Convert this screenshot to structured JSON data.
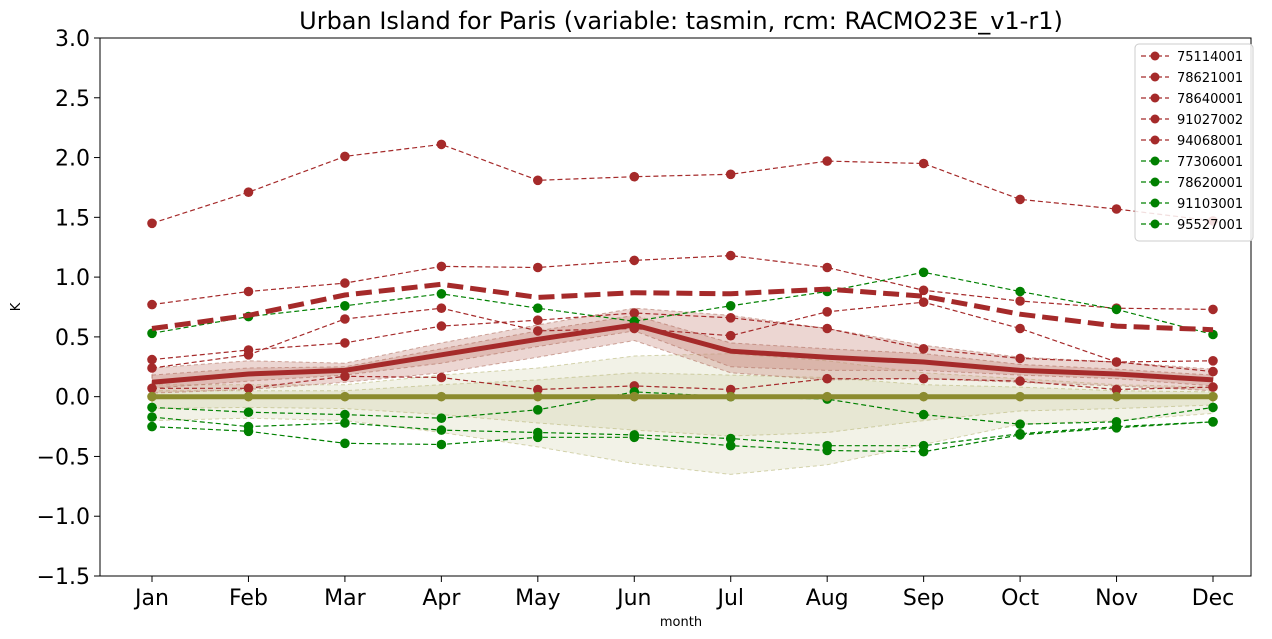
{
  "chart_data": {
    "type": "line",
    "title": "Urban Island for Paris (variable: tasmin, rcm: RACMO23E_v1-r1)",
    "xlabel": "month",
    "ylabel": "K",
    "ylim": [
      -1.5,
      3.0
    ],
    "yticks": [
      "3.0",
      "2.5",
      "2.0",
      "1.5",
      "1.0",
      "0.5",
      "0.0",
      "−0.5",
      "−1.0",
      "−1.5"
    ],
    "ytick_values": [
      3.0,
      2.5,
      2.0,
      1.5,
      1.0,
      0.5,
      0.0,
      -0.5,
      -1.0,
      -1.5
    ],
    "categories": [
      "Jan",
      "Feb",
      "Mar",
      "Apr",
      "May",
      "Jun",
      "Jul",
      "Aug",
      "Sep",
      "Oct",
      "Nov",
      "Dec"
    ],
    "grid": false,
    "legend_position": "top-right",
    "colors": {
      "urban": "#a52a2a",
      "rural": "#008000",
      "reference": "#8b8b2e"
    },
    "series": [
      {
        "name": "75114001",
        "group": "urban",
        "values": [
          0.77,
          0.88,
          0.95,
          1.09,
          1.08,
          1.14,
          1.18,
          1.08,
          0.89,
          0.8,
          0.74,
          0.73
        ]
      },
      {
        "name": "78621001",
        "group": "urban",
        "values": [
          0.31,
          0.39,
          0.45,
          0.59,
          0.64,
          0.7,
          0.66,
          0.57,
          0.4,
          0.32,
          0.29,
          0.3
        ]
      },
      {
        "name": "78640001",
        "group": "urban",
        "values": [
          0.07,
          0.07,
          0.17,
          0.16,
          0.06,
          0.09,
          0.06,
          0.15,
          0.15,
          0.13,
          0.06,
          0.08
        ]
      },
      {
        "name": "91027002",
        "group": "urban",
        "values": [
          1.45,
          1.71,
          2.01,
          2.11,
          1.81,
          1.84,
          1.86,
          1.97,
          1.95,
          1.65,
          1.57,
          1.47
        ]
      },
      {
        "name": "94068001",
        "group": "urban",
        "values": [
          0.24,
          0.35,
          0.65,
          0.74,
          0.55,
          0.57,
          0.51,
          0.71,
          0.79,
          0.57,
          0.29,
          0.21
        ]
      },
      {
        "name": "77306001",
        "group": "rural",
        "values": [
          0.53,
          0.67,
          0.76,
          0.86,
          0.74,
          0.63,
          0.76,
          0.88,
          1.04,
          0.88,
          0.73,
          0.52
        ]
      },
      {
        "name": "78620001",
        "group": "rural",
        "values": [
          -0.25,
          -0.29,
          -0.39,
          -0.4,
          -0.34,
          -0.34,
          -0.41,
          -0.45,
          -0.46,
          -0.32,
          -0.26,
          -0.21
        ]
      },
      {
        "name": "91103001",
        "group": "rural",
        "values": [
          -0.17,
          -0.25,
          -0.22,
          -0.28,
          -0.3,
          -0.32,
          -0.35,
          -0.41,
          -0.41,
          -0.31,
          -0.25,
          -0.21
        ]
      },
      {
        "name": "95527001",
        "group": "rural",
        "values": [
          -0.09,
          -0.13,
          -0.15,
          -0.18,
          -0.11,
          0.04,
          0.0,
          -0.02,
          -0.15,
          -0.23,
          -0.21,
          -0.09
        ]
      }
    ],
    "summary_lines": {
      "urban_mean": [
        0.57,
        0.68,
        0.85,
        0.94,
        0.83,
        0.87,
        0.86,
        0.9,
        0.84,
        0.69,
        0.59,
        0.56
      ],
      "urban_median": [
        0.12,
        0.19,
        0.22,
        0.35,
        0.48,
        0.6,
        0.38,
        0.33,
        0.29,
        0.22,
        0.19,
        0.14
      ],
      "reference": [
        0,
        0,
        0,
        0,
        0,
        0,
        0,
        0,
        0,
        0,
        0,
        0
      ]
    },
    "bands": {
      "urban_outer": {
        "upper": [
          0.24,
          0.3,
          0.28,
          0.45,
          0.6,
          0.74,
          0.68,
          0.57,
          0.43,
          0.33,
          0.29,
          0.23
        ],
        "lower": [
          0.03,
          0.06,
          0.12,
          0.2,
          0.33,
          0.47,
          0.2,
          0.14,
          0.15,
          0.12,
          0.09,
          0.05
        ]
      },
      "urban_inner": {
        "upper": [
          0.18,
          0.24,
          0.25,
          0.4,
          0.55,
          0.68,
          0.45,
          0.4,
          0.36,
          0.27,
          0.23,
          0.18
        ],
        "lower": [
          0.07,
          0.13,
          0.18,
          0.28,
          0.42,
          0.55,
          0.25,
          0.22,
          0.22,
          0.18,
          0.15,
          0.09
        ]
      },
      "reference_outer": {
        "upper": [
          0.1,
          0.1,
          0.1,
          0.18,
          0.24,
          0.34,
          0.36,
          0.3,
          0.2,
          0.15,
          0.1,
          0.08
        ],
        "lower": [
          -0.2,
          -0.18,
          -0.2,
          -0.3,
          -0.42,
          -0.56,
          -0.65,
          -0.57,
          -0.4,
          -0.23,
          -0.2,
          -0.14
        ]
      },
      "reference_inner": {
        "upper": [
          0.05,
          0.05,
          0.05,
          0.1,
          0.14,
          0.2,
          0.18,
          0.16,
          0.1,
          0.08,
          0.05,
          0.04
        ],
        "lower": [
          -0.1,
          -0.09,
          -0.1,
          -0.15,
          -0.22,
          -0.28,
          -0.33,
          -0.3,
          -0.2,
          -0.12,
          -0.1,
          -0.07
        ]
      }
    }
  }
}
